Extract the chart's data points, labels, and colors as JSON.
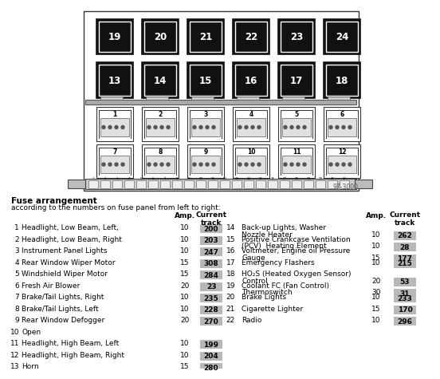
{
  "title": "Fuse arrangement",
  "subtitle": "according to the numbers on fuse panel from left to right:",
  "bg_color": "#ffffff",
  "large_fuses": [
    "19",
    "20",
    "21",
    "22",
    "23",
    "24"
  ],
  "medium_fuses": [
    "13",
    "14",
    "15",
    "16",
    "17",
    "18"
  ],
  "relay_top": [
    "1",
    "2",
    "3",
    "4",
    "5",
    "6"
  ],
  "relay_bottom": [
    "7",
    "8",
    "9",
    "10",
    "11",
    "12"
  ],
  "watermark": "97-3000",
  "track_bg": "#b8b8b8",
  "left_entries": [
    {
      "num": 1,
      "desc": "Headlight, Low Beam, Left,",
      "amp": "10",
      "track": "200"
    },
    {
      "num": 2,
      "desc": "Headlight, Low Beam, Right",
      "amp": "10",
      "track": "203"
    },
    {
      "num": 3,
      "desc": "Instrument Panel Lights",
      "amp": "10",
      "track": "247"
    },
    {
      "num": 4,
      "desc": "Rear Window Wiper Motor",
      "amp": "15",
      "track": "308"
    },
    {
      "num": 5,
      "desc": "Windshield Wiper Motor",
      "amp": "15",
      "track": "284"
    },
    {
      "num": 6,
      "desc": "Fresh Air Blower",
      "amp": "20",
      "track": "23"
    },
    {
      "num": 7,
      "desc": "Brake/Tail Lights, Right",
      "amp": "10",
      "track": "235"
    },
    {
      "num": 8,
      "desc": "Brake/Tail Lights, Left",
      "amp": "10",
      "track": "228"
    },
    {
      "num": 9,
      "desc": "Rear Window Defogger",
      "amp": "20",
      "track": "270"
    },
    {
      "num": 10,
      "desc": "Open",
      "amp": "",
      "track": ""
    },
    {
      "num": 11,
      "desc": "Headlight, High Beam, Left",
      "amp": "10",
      "track": "199"
    },
    {
      "num": 12,
      "desc": "Headlight, High Beam, Right",
      "amp": "10",
      "track": "204"
    },
    {
      "num": 13,
      "desc": "Horn",
      "amp": "15",
      "track": "280"
    }
  ],
  "right_entries": [
    {
      "num": 14,
      "desc": "Back-up Lights, Washer\nNozzle Heater",
      "amp": "10",
      "track": "262"
    },
    {
      "num": 15,
      "desc": "Positive Crankcase Ventilation\n(PCV)  Heating Element",
      "amp": "10",
      "track": "28"
    },
    {
      "num": 16,
      "desc": "Voltmeter, Engine oil Pressure\nGauge",
      "amp": "15",
      "track": "177"
    },
    {
      "num": 17,
      "desc": "Emergency Flashers",
      "amp": "10",
      "track": "215"
    },
    {
      "num": 18,
      "desc": "HO₂S (Heated Oxygen Sensor)\nControl",
      "amp": "20",
      "track": "53"
    },
    {
      "num": 19,
      "desc": "Coolant FC (Fan Control)\nThermoswitch",
      "amp": "30",
      "track": "31"
    },
    {
      "num": 20,
      "desc": "Brake Lights",
      "amp": "10",
      "track": "233"
    },
    {
      "num": 21,
      "desc": "Cigarette Lighter",
      "amp": "15",
      "track": "170"
    },
    {
      "num": 22,
      "desc": "Radio",
      "amp": "10",
      "track": "296"
    }
  ]
}
